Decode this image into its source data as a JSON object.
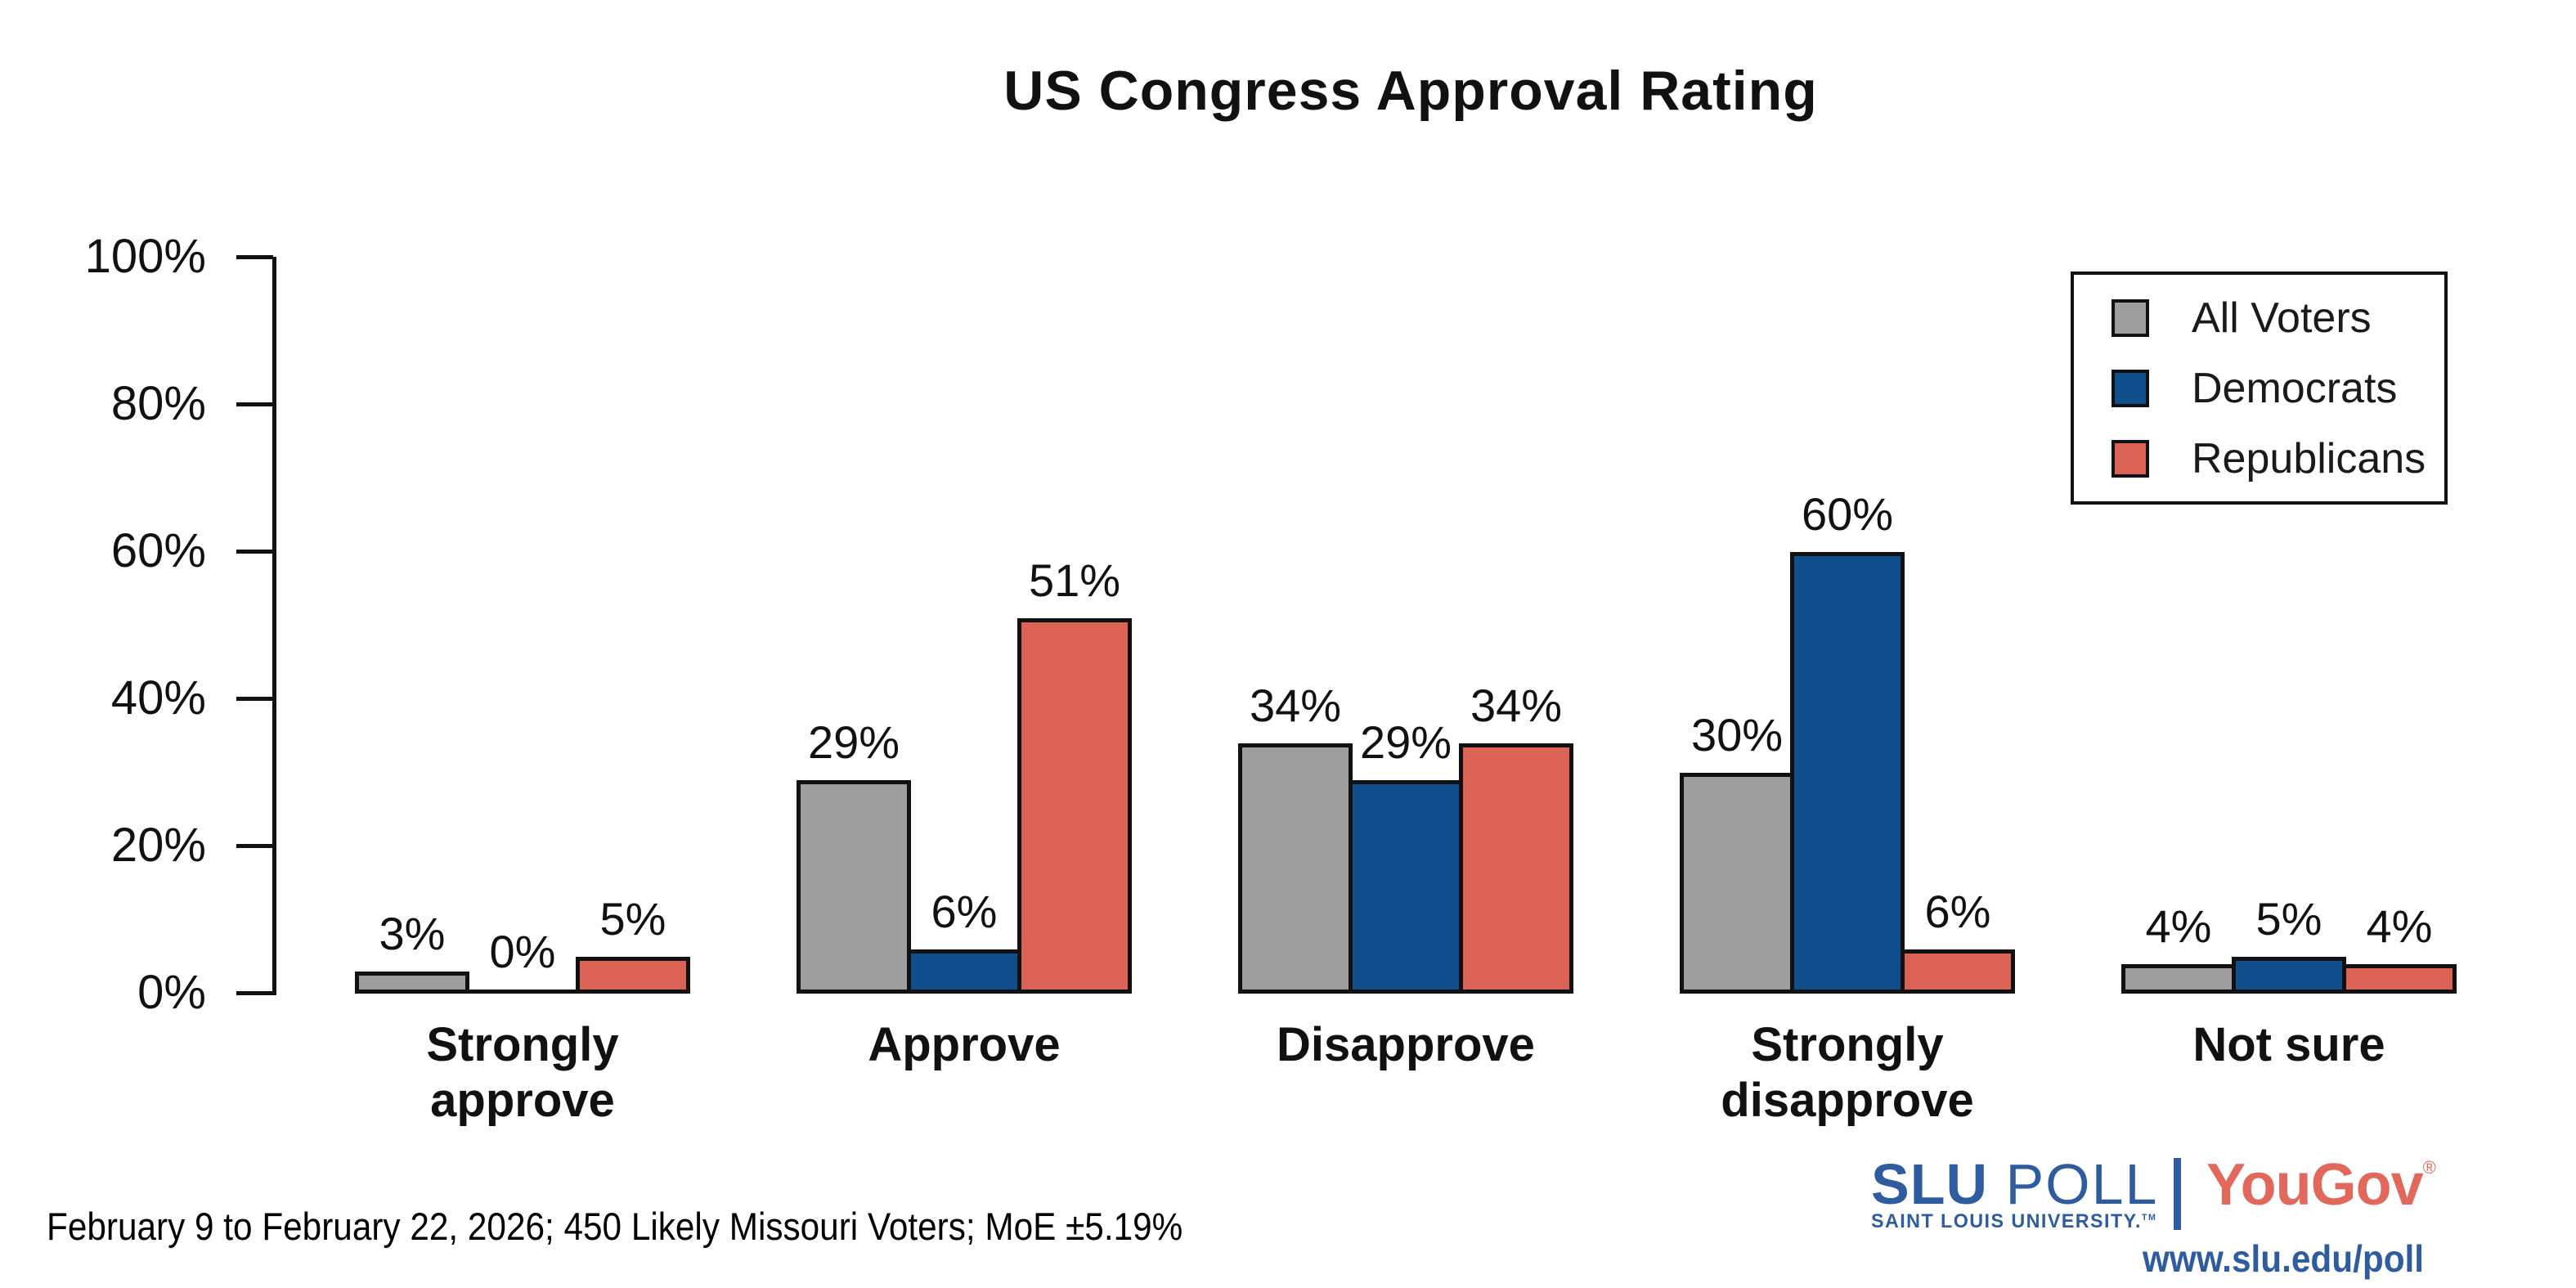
{
  "title": "US Congress Approval Rating",
  "footer_note": "February 9 to February 22, 2026; 450 Likely Missouri Voters; MoE ±5.19%",
  "legend": {
    "items": [
      {
        "label": "All Voters",
        "color": "#9e9e9e"
      },
      {
        "label": "Democrats",
        "color": "#104f8c"
      },
      {
        "label": "Republicans",
        "color": "#dc6457"
      }
    ]
  },
  "branding": {
    "slu_word": "SLU",
    "poll_word": "POLL",
    "slu_subtitle": "SAINT LOUIS UNIVERSITY.",
    "slu_trademark": "TM",
    "yougov_word": "YouGov",
    "yougov_registered": "®",
    "url": "www.slu.edu/poll",
    "slu_blue": "#2e5c9f",
    "yougov_red": "#e2685b"
  },
  "chart_data": {
    "type": "bar",
    "title": "US Congress Approval Rating",
    "categories": [
      "Strongly approve",
      "Approve",
      "Disapprove",
      "Strongly disapprove",
      "Not sure"
    ],
    "series": [
      {
        "name": "All Voters",
        "color": "#9e9e9e",
        "values": [
          3,
          29,
          34,
          30,
          4
        ]
      },
      {
        "name": "Democrats",
        "color": "#104f8c",
        "values": [
          0,
          6,
          29,
          60,
          5
        ]
      },
      {
        "name": "Republicans",
        "color": "#dc6457",
        "values": [
          5,
          51,
          34,
          6,
          4
        ]
      }
    ],
    "value_labels": [
      [
        "3%",
        "29%",
        "34%",
        "30%",
        "4%"
      ],
      [
        "0%",
        "6%",
        "29%",
        "60%",
        "5%"
      ],
      [
        "5%",
        "51%",
        "34%",
        "6%",
        "4%"
      ]
    ],
    "xlabel": "",
    "ylabel": "",
    "ylim": [
      0,
      100
    ],
    "yticks": [
      "0%",
      "20%",
      "40%",
      "60%",
      "80%",
      "100%"
    ],
    "grid": false,
    "bar_outline_color": "#111111",
    "legend_position": "top-right",
    "category_label_lines": [
      [
        "Strongly",
        "approve"
      ],
      [
        "Approve"
      ],
      [
        "Disapprove"
      ],
      [
        "Strongly",
        "disapprove"
      ],
      [
        "Not sure"
      ]
    ]
  }
}
